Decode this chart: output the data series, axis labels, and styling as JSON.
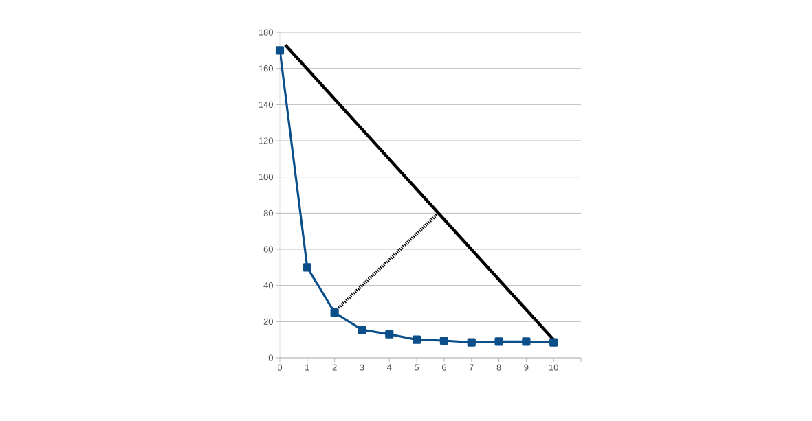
{
  "chart_data": {
    "type": "line",
    "x": [
      0,
      1,
      2,
      3,
      4,
      5,
      6,
      7,
      8,
      9,
      10
    ],
    "series": [
      {
        "color": "#0b4f8a",
        "marker": "square",
        "line_style": "solid",
        "values": [
          170,
          50,
          25,
          15.5,
          13,
          10,
          9.5,
          8.5,
          9,
          9,
          8.5
        ]
      },
      {
        "color": "#000000",
        "marker": "none",
        "line_style": "solid",
        "x": [
          0.2,
          10
        ],
        "values": [
          173,
          10
        ]
      },
      {
        "color": "#000000",
        "marker": "none",
        "line_style": "dotted",
        "x": [
          2.15,
          5.75
        ],
        "values": [
          27.7,
          79.4
        ]
      }
    ],
    "xlim": [
      0,
      11
    ],
    "ylim": [
      0,
      180
    ],
    "xticks": [
      0,
      1,
      2,
      3,
      4,
      5,
      6,
      7,
      8,
      9,
      10,
      {
        "value": 11,
        "label": null
      }
    ],
    "yticks": [
      0,
      20,
      40,
      60,
      80,
      100,
      120,
      140,
      160,
      180
    ],
    "grid": "y"
  }
}
